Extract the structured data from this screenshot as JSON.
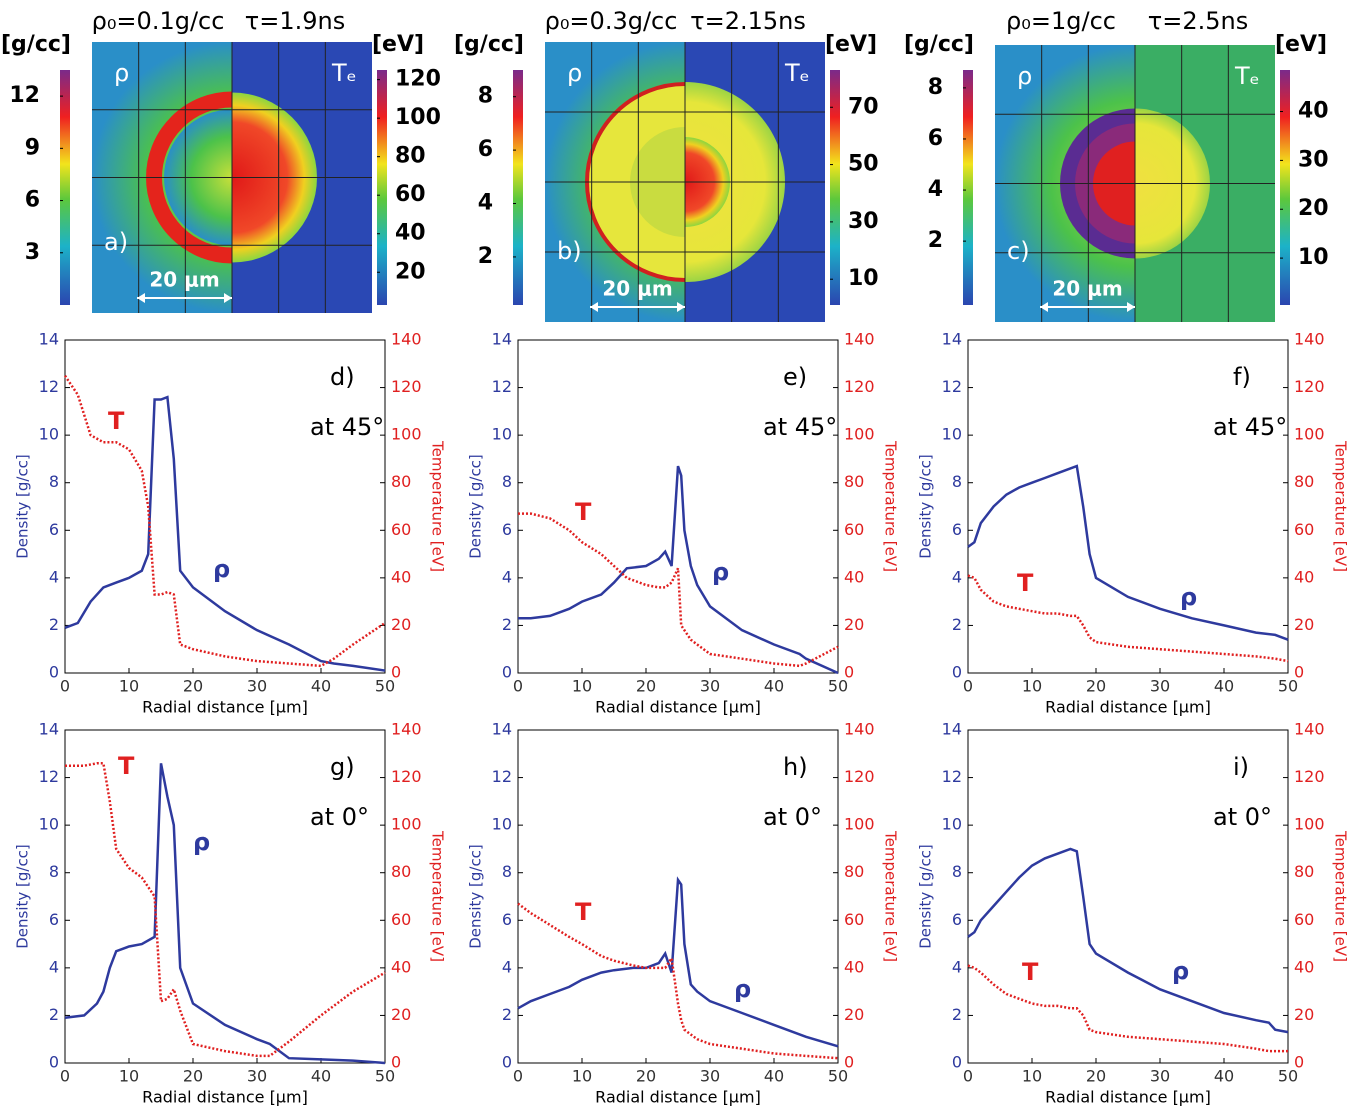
{
  "chart_data": [
    {
      "type": "image",
      "title": "ρ₀=0.1g/cc",
      "subtitle": "τ=1.9ns",
      "left_unit": "[g/cc]",
      "right_unit": "[eV]",
      "left_lim": [
        0,
        13.5
      ],
      "left_ticks": [
        3,
        6,
        9,
        12
      ],
      "right_lim": [
        3,
        125
      ],
      "right_ticks": [
        20,
        40,
        60,
        80,
        100,
        120
      ],
      "rho_label": "ρ",
      "te_label": "Tₑ",
      "panel": "a)",
      "scale": "20 μm"
    },
    {
      "type": "image",
      "title": "ρ₀=0.3g/cc",
      "subtitle": "τ=2.15ns",
      "left_unit": "[g/cc]",
      "right_unit": "[eV]",
      "left_lim": [
        0.2,
        9
      ],
      "left_ticks": [
        2,
        4,
        6,
        8
      ],
      "right_lim": [
        1,
        83
      ],
      "right_ticks": [
        10,
        30,
        50,
        70
      ],
      "rho_label": "ρ",
      "te_label": "Tₑ",
      "panel": "b)",
      "scale": "20 μm"
    },
    {
      "type": "image",
      "title": "ρ₀=1g/cc",
      "subtitle": "τ=2.5ns",
      "left_unit": "[g/cc]",
      "right_unit": "[eV]",
      "left_lim": [
        -0.5,
        8.7
      ],
      "left_ticks": [
        2,
        4,
        6,
        8
      ],
      "right_lim": [
        0.4,
        48.5
      ],
      "right_ticks": [
        10,
        20,
        30,
        40
      ],
      "rho_label": "ρ",
      "te_label": "Tₑ",
      "panel": "c)",
      "scale": "20 μm"
    },
    {
      "type": "line",
      "panel": "d)",
      "annotation": "at 45°",
      "xlabel": "Radial distance [μm]",
      "ylabel": "Density [g/cc]",
      "y2label": "Temperature [eV]",
      "xlim": [
        0,
        50
      ],
      "xticks": [
        0,
        10,
        20,
        30,
        40,
        50
      ],
      "ylim": [
        0,
        14
      ],
      "yticks": [
        0,
        2,
        4,
        6,
        8,
        10,
        12,
        14
      ],
      "y2lim": [
        0,
        140
      ],
      "y2ticks": [
        0,
        20,
        40,
        60,
        80,
        100,
        120,
        140
      ],
      "x": [
        0,
        2,
        4,
        6,
        8,
        10,
        12,
        13,
        14,
        15,
        16,
        17,
        18,
        20,
        25,
        30,
        35,
        40,
        42,
        45,
        50
      ],
      "series": [
        {
          "name": "ρ",
          "color": "#2e3a9e",
          "values": [
            1.9,
            2.1,
            3.0,
            3.6,
            3.8,
            4.0,
            4.3,
            5.0,
            11.5,
            11.5,
            11.6,
            9.0,
            4.3,
            3.6,
            2.6,
            1.8,
            1.2,
            0.5,
            0.4,
            0.3,
            0.1
          ]
        },
        {
          "name": "T",
          "color": "#e02020",
          "axis": "y2",
          "style": "dotted",
          "values": [
            125,
            117,
            100,
            97,
            97,
            94,
            85,
            70,
            33,
            33,
            34,
            33,
            12,
            10,
            7,
            5,
            4,
            3,
            6,
            12,
            21
          ]
        }
      ]
    },
    {
      "type": "line",
      "panel": "e)",
      "annotation": "at 45°",
      "xlabel": "Radial distance [μm]",
      "ylabel": "Density [g/cc]",
      "y2label": "Temperature [eV]",
      "xlim": [
        0,
        50
      ],
      "xticks": [
        0,
        10,
        20,
        30,
        40,
        50
      ],
      "ylim": [
        0,
        14
      ],
      "yticks": [
        0,
        2,
        4,
        6,
        8,
        10,
        12,
        14
      ],
      "y2lim": [
        0,
        140
      ],
      "y2ticks": [
        0,
        20,
        40,
        60,
        80,
        100,
        120,
        140
      ],
      "x": [
        0,
        2,
        5,
        8,
        10,
        13,
        15,
        17,
        20,
        22,
        23,
        24,
        25,
        25.5,
        26,
        27,
        28,
        30,
        35,
        40,
        44,
        45,
        50
      ],
      "series": [
        {
          "name": "ρ",
          "color": "#2e3a9e",
          "values": [
            2.3,
            2.3,
            2.4,
            2.7,
            3.0,
            3.3,
            3.8,
            4.4,
            4.5,
            4.8,
            5.1,
            4.5,
            8.7,
            8.3,
            6.0,
            4.5,
            3.7,
            2.8,
            1.8,
            1.2,
            0.8,
            0.6,
            0.0
          ]
        },
        {
          "name": "T",
          "color": "#e02020",
          "axis": "y2",
          "style": "dotted",
          "values": [
            67,
            67,
            65,
            60,
            55,
            50,
            45,
            40,
            37,
            36,
            36,
            38,
            44,
            20,
            18,
            14,
            12,
            8,
            6,
            4,
            3,
            4,
            11
          ]
        }
      ]
    },
    {
      "type": "line",
      "panel": "f)",
      "annotation": "at 45°",
      "xlabel": "Radial distance [μm]",
      "ylabel": "Density [g/cc]",
      "y2label": "Temperature [eV]",
      "xlim": [
        0,
        50
      ],
      "xticks": [
        0,
        10,
        20,
        30,
        40,
        50
      ],
      "ylim": [
        0,
        14
      ],
      "yticks": [
        0,
        2,
        4,
        6,
        8,
        10,
        12,
        14
      ],
      "y2lim": [
        0,
        140
      ],
      "y2ticks": [
        0,
        20,
        40,
        60,
        80,
        100,
        120,
        140
      ],
      "x": [
        0,
        1,
        2,
        4,
        6,
        8,
        10,
        12,
        14,
        16,
        17,
        18,
        19,
        20,
        25,
        30,
        35,
        40,
        45,
        48,
        50
      ],
      "series": [
        {
          "name": "ρ",
          "color": "#2e3a9e",
          "values": [
            5.3,
            5.5,
            6.3,
            7.0,
            7.5,
            7.8,
            8.0,
            8.2,
            8.4,
            8.6,
            8.7,
            7.0,
            5.0,
            4.0,
            3.2,
            2.7,
            2.3,
            2.0,
            1.7,
            1.6,
            1.4
          ]
        },
        {
          "name": "T",
          "color": "#e02020",
          "axis": "y2",
          "style": "dotted",
          "values": [
            41,
            40,
            35,
            30,
            28,
            27,
            26,
            25,
            25,
            24,
            24,
            20,
            15,
            13,
            11,
            10,
            9,
            8,
            7,
            6,
            5
          ]
        }
      ]
    },
    {
      "type": "line",
      "panel": "g)",
      "annotation": "at 0°",
      "xlabel": "Radial distance [μm]",
      "ylabel": "Density [g/cc]",
      "y2label": "Temperature [eV]",
      "xlim": [
        0,
        50
      ],
      "xticks": [
        0,
        10,
        20,
        30,
        40,
        50
      ],
      "ylim": [
        0,
        14
      ],
      "yticks": [
        0,
        2,
        4,
        6,
        8,
        10,
        12,
        14
      ],
      "y2lim": [
        0,
        140
      ],
      "y2ticks": [
        0,
        20,
        40,
        60,
        80,
        100,
        120,
        140
      ],
      "x": [
        0,
        3,
        5,
        6,
        7,
        8,
        10,
        12,
        14,
        15,
        16,
        17,
        18,
        20,
        25,
        30,
        32,
        35,
        40,
        45,
        50
      ],
      "series": [
        {
          "name": "ρ",
          "color": "#2e3a9e",
          "values": [
            1.9,
            2.0,
            2.5,
            3.0,
            4.0,
            4.7,
            4.9,
            5.0,
            5.3,
            12.6,
            11.2,
            10.0,
            4.0,
            2.5,
            1.6,
            1.0,
            0.8,
            0.2,
            0.15,
            0.1,
            0.0
          ]
        },
        {
          "name": "T",
          "color": "#e02020",
          "axis": "y2",
          "style": "dotted",
          "values": [
            125,
            125,
            126,
            126,
            110,
            90,
            82,
            78,
            70,
            26,
            27,
            31,
            22,
            8,
            5,
            3,
            3,
            9,
            20,
            30,
            38
          ]
        }
      ]
    },
    {
      "type": "line",
      "panel": "h)",
      "annotation": "at 0°",
      "xlabel": "Radial distance [μm]",
      "ylabel": "Density [g/cc]",
      "y2label": "Temperature [eV]",
      "xlim": [
        0,
        50
      ],
      "xticks": [
        0,
        10,
        20,
        30,
        40,
        50
      ],
      "ylim": [
        0,
        14
      ],
      "yticks": [
        0,
        2,
        4,
        6,
        8,
        10,
        12,
        14
      ],
      "y2lim": [
        0,
        140
      ],
      "y2ticks": [
        0,
        20,
        40,
        60,
        80,
        100,
        120,
        140
      ],
      "x": [
        0,
        2,
        5,
        8,
        10,
        13,
        15,
        18,
        20,
        22,
        23,
        24,
        25,
        25.5,
        26,
        27,
        28,
        30,
        35,
        40,
        45,
        50
      ],
      "series": [
        {
          "name": "ρ",
          "color": "#2e3a9e",
          "values": [
            2.3,
            2.6,
            2.9,
            3.2,
            3.5,
            3.8,
            3.9,
            4.0,
            4.0,
            4.2,
            4.6,
            3.8,
            7.7,
            7.5,
            5.0,
            3.3,
            3.0,
            2.6,
            2.1,
            1.6,
            1.1,
            0.7
          ]
        },
        {
          "name": "T",
          "color": "#e02020",
          "axis": "y2",
          "style": "dotted",
          "values": [
            67,
            63,
            58,
            53,
            50,
            45,
            43,
            41,
            40,
            40,
            40,
            44,
            25,
            18,
            14,
            12,
            10,
            8,
            6,
            4,
            3,
            2
          ]
        }
      ]
    },
    {
      "type": "line",
      "panel": "i)",
      "annotation": "at 0°",
      "xlabel": "Radial distance [μm]",
      "ylabel": "Density [g/cc]",
      "y2label": "Temperature [eV]",
      "xlim": [
        0,
        50
      ],
      "xticks": [
        0,
        10,
        20,
        30,
        40,
        50
      ],
      "ylim": [
        0,
        14
      ],
      "yticks": [
        0,
        2,
        4,
        6,
        8,
        10,
        12,
        14
      ],
      "y2lim": [
        0,
        140
      ],
      "y2ticks": [
        0,
        20,
        40,
        60,
        80,
        100,
        120,
        140
      ],
      "x": [
        0,
        1,
        2,
        4,
        6,
        8,
        10,
        12,
        14,
        16,
        17,
        18,
        19,
        20,
        25,
        30,
        35,
        40,
        45,
        47,
        48,
        50
      ],
      "series": [
        {
          "name": "ρ",
          "color": "#2e3a9e",
          "values": [
            5.3,
            5.5,
            6.0,
            6.6,
            7.2,
            7.8,
            8.3,
            8.6,
            8.8,
            9.0,
            8.9,
            7.0,
            5.0,
            4.6,
            3.8,
            3.1,
            2.6,
            2.1,
            1.8,
            1.7,
            1.4,
            1.3
          ]
        },
        {
          "name": "T",
          "color": "#e02020",
          "axis": "y2",
          "style": "dotted",
          "values": [
            41,
            40,
            38,
            33,
            29,
            27,
            25,
            24,
            24,
            23,
            23,
            20,
            14,
            13,
            11,
            10,
            9,
            8,
            6,
            5,
            5,
            5
          ]
        }
      ]
    }
  ]
}
